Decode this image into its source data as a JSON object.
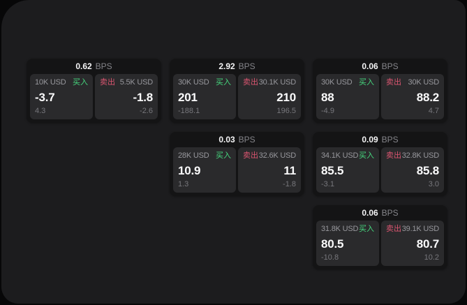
{
  "labels": {
    "bps": "BPS",
    "buy": "买入",
    "sell": "卖出"
  },
  "colors": {
    "buy": "#46d77e",
    "sell": "#da5570",
    "panel_bg": "#1c1c1e",
    "card_bg": "#141415",
    "side_bg": "#2a2a2c"
  },
  "cards": [
    {
      "col": 1,
      "row": 1,
      "bps": "0.62",
      "buy": {
        "amount": "10K USD",
        "price": "-3.7",
        "delta": "4.3"
      },
      "sell": {
        "amount": "5.5K USD",
        "price": "-1.8",
        "delta": "-2.6"
      }
    },
    {
      "col": 2,
      "row": 1,
      "bps": "2.92",
      "buy": {
        "amount": "30K USD",
        "price": "201",
        "delta": "-188.1"
      },
      "sell": {
        "amount": "30.1K USD",
        "price": "210",
        "delta": "196.5"
      }
    },
    {
      "col": 3,
      "row": 1,
      "bps": "0.06",
      "buy": {
        "amount": "30K USD",
        "price": "88",
        "delta": "-4.9"
      },
      "sell": {
        "amount": "30K USD",
        "price": "88.2",
        "delta": "4.7"
      }
    },
    {
      "col": 2,
      "row": 2,
      "bps": "0.03",
      "buy": {
        "amount": "28K USD",
        "price": "10.9",
        "delta": "1.3"
      },
      "sell": {
        "amount": "32.6K USD",
        "price": "11",
        "delta": "-1.8"
      }
    },
    {
      "col": 3,
      "row": 2,
      "bps": "0.09",
      "buy": {
        "amount": "34.1K USD",
        "price": "85.5",
        "delta": "-3.1"
      },
      "sell": {
        "amount": "32.8K USD",
        "price": "85.8",
        "delta": "3.0"
      }
    },
    {
      "col": 3,
      "row": 3,
      "bps": "0.06",
      "buy": {
        "amount": "31.8K USD",
        "price": "80.5",
        "delta": "-10.8"
      },
      "sell": {
        "amount": "39.1K USD",
        "price": "80.7",
        "delta": "10.2"
      }
    }
  ]
}
